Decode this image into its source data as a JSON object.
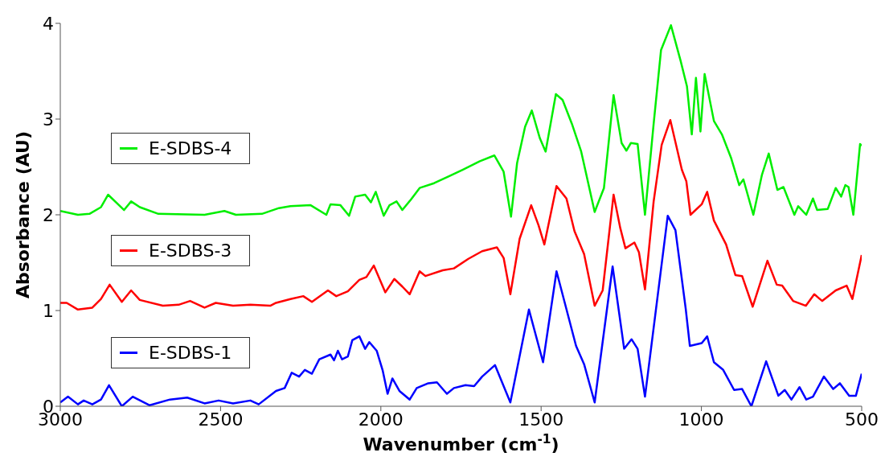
{
  "chart_data": {
    "type": "line",
    "xlabel": "Wavenumber (cm$^{-1}$)",
    "ylabel": "Absorbance (AU)",
    "xlim": [
      3000,
      500
    ],
    "xticks": [
      3000,
      2500,
      2000,
      1500,
      1000,
      500
    ],
    "ylim": [
      0,
      4
    ],
    "yticks": [
      0,
      1,
      2,
      3,
      4
    ],
    "legend": "left",
    "marker": "none",
    "line_style": "solid",
    "series": [
      {
        "name": "E-SDBS-4",
        "color": "#00ee00",
        "x": [
          3000,
          2945,
          2909,
          2873,
          2851,
          2801,
          2779,
          2752,
          2694,
          2550,
          2488,
          2452,
          2371,
          2318,
          2282,
          2219,
          2170,
          2157,
          2126,
          2099,
          2080,
          2049,
          2031,
          2016,
          1991,
          1973,
          1951,
          1933,
          1906,
          1879,
          1834,
          1789,
          1745,
          1691,
          1646,
          1617,
          1594,
          1575,
          1550,
          1529,
          1504,
          1486,
          1454,
          1433,
          1404,
          1375,
          1333,
          1304,
          1274,
          1249,
          1234,
          1220,
          1199,
          1176,
          1149,
          1126,
          1095,
          1065,
          1045,
          1030,
          1017,
          1003,
          990,
          961,
          936,
          907,
          882,
          869,
          838,
          811,
          790,
          763,
          744,
          710,
          698,
          673,
          652,
          639,
          606,
          581,
          564,
          551,
          541,
          526,
          505,
          500
        ],
        "values": [
          2.04,
          2.0,
          2.01,
          2.08,
          2.21,
          2.05,
          2.14,
          2.08,
          2.01,
          2.0,
          2.04,
          2.0,
          2.01,
          2.07,
          2.09,
          2.1,
          2.0,
          2.11,
          2.1,
          1.99,
          2.19,
          2.21,
          2.13,
          2.24,
          1.99,
          2.1,
          2.14,
          2.05,
          2.16,
          2.28,
          2.33,
          2.4,
          2.47,
          2.56,
          2.62,
          2.45,
          1.98,
          2.54,
          2.92,
          3.09,
          2.8,
          2.66,
          3.26,
          3.2,
          2.95,
          2.66,
          2.03,
          2.28,
          3.25,
          2.75,
          2.67,
          2.75,
          2.74,
          2.0,
          2.95,
          3.72,
          3.98,
          3.61,
          3.34,
          2.84,
          3.43,
          2.87,
          3.47,
          2.98,
          2.84,
          2.59,
          2.31,
          2.37,
          2.0,
          2.42,
          2.64,
          2.26,
          2.29,
          2.0,
          2.09,
          2.0,
          2.17,
          2.05,
          2.06,
          2.28,
          2.19,
          2.31,
          2.29,
          2.0,
          2.74,
          2.72
        ]
      },
      {
        "name": "E-SDBS-3",
        "color": "#ff0000",
        "x": [
          3000,
          2980,
          2945,
          2900,
          2873,
          2846,
          2808,
          2779,
          2752,
          2680,
          2631,
          2595,
          2550,
          2515,
          2461,
          2407,
          2345,
          2327,
          2282,
          2242,
          2215,
          2165,
          2139,
          2103,
          2067,
          2045,
          2022,
          1986,
          1958,
          1933,
          1910,
          1879,
          1861,
          1807,
          1772,
          1727,
          1684,
          1638,
          1617,
          1596,
          1567,
          1531,
          1508,
          1490,
          1452,
          1421,
          1396,
          1366,
          1333,
          1308,
          1274,
          1253,
          1237,
          1209,
          1195,
          1176,
          1149,
          1124,
          1097,
          1061,
          1047,
          1034,
          999,
          982,
          961,
          923,
          894,
          873,
          840,
          794,
          765,
          748,
          714,
          674,
          648,
          623,
          581,
          547,
          529,
          500
        ],
        "values": [
          1.08,
          1.08,
          1.01,
          1.03,
          1.12,
          1.27,
          1.09,
          1.21,
          1.11,
          1.05,
          1.06,
          1.1,
          1.03,
          1.08,
          1.05,
          1.06,
          1.05,
          1.08,
          1.12,
          1.15,
          1.09,
          1.21,
          1.15,
          1.2,
          1.32,
          1.35,
          1.47,
          1.19,
          1.33,
          1.25,
          1.17,
          1.41,
          1.36,
          1.42,
          1.44,
          1.54,
          1.62,
          1.66,
          1.55,
          1.17,
          1.75,
          2.1,
          1.89,
          1.69,
          2.3,
          2.17,
          1.83,
          1.59,
          1.05,
          1.21,
          2.21,
          1.86,
          1.65,
          1.71,
          1.61,
          1.22,
          2.14,
          2.73,
          2.99,
          2.47,
          2.35,
          2.0,
          2.11,
          2.24,
          1.94,
          1.69,
          1.37,
          1.36,
          1.04,
          1.52,
          1.27,
          1.26,
          1.1,
          1.05,
          1.17,
          1.1,
          1.21,
          1.26,
          1.12,
          1.58
        ]
      },
      {
        "name": "E-SDBS-1",
        "color": "#0000ff",
        "x": [
          3000,
          2976,
          2945,
          2927,
          2900,
          2873,
          2848,
          2808,
          2774,
          2721,
          2658,
          2604,
          2550,
          2506,
          2461,
          2407,
          2381,
          2327,
          2300,
          2278,
          2255,
          2237,
          2215,
          2192,
          2157,
          2146,
          2134,
          2121,
          2103,
          2089,
          2067,
          2049,
          2036,
          2013,
          1994,
          1979,
          1964,
          1942,
          1910,
          1888,
          1852,
          1825,
          1794,
          1772,
          1736,
          1709,
          1684,
          1644,
          1596,
          1538,
          1494,
          1452,
          1391,
          1366,
          1333,
          1277,
          1241,
          1218,
          1199,
          1176,
          1105,
          1081,
          1049,
          1036,
          999,
          982,
          961,
          932,
          898,
          873,
          844,
          798,
          760,
          740,
          719,
          694,
          673,
          652,
          618,
          589,
          568,
          539,
          518,
          500
        ],
        "values": [
          0.04,
          0.1,
          0.02,
          0.06,
          0.02,
          0.07,
          0.22,
          0.0,
          0.1,
          0.01,
          0.07,
          0.09,
          0.03,
          0.06,
          0.03,
          0.06,
          0.02,
          0.16,
          0.19,
          0.35,
          0.31,
          0.38,
          0.34,
          0.49,
          0.54,
          0.48,
          0.58,
          0.49,
          0.52,
          0.69,
          0.73,
          0.6,
          0.67,
          0.58,
          0.37,
          0.13,
          0.29,
          0.16,
          0.07,
          0.19,
          0.24,
          0.25,
          0.13,
          0.19,
          0.22,
          0.21,
          0.31,
          0.43,
          0.04,
          1.01,
          0.46,
          1.41,
          0.63,
          0.44,
          0.04,
          1.46,
          0.6,
          0.7,
          0.6,
          0.1,
          1.99,
          1.84,
          1.02,
          0.63,
          0.66,
          0.73,
          0.46,
          0.38,
          0.17,
          0.18,
          0.0,
          0.47,
          0.11,
          0.17,
          0.07,
          0.2,
          0.07,
          0.1,
          0.31,
          0.18,
          0.24,
          0.11,
          0.11,
          0.34
        ]
      }
    ]
  }
}
